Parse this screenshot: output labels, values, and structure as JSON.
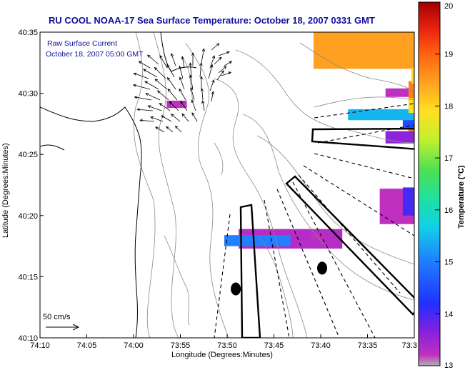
{
  "chart_data": {
    "type": "heatmap",
    "title": "RU COOL  NOAA-17  Sea Surface Temperature:  October 18, 2007 0331 GMT",
    "xlabel": "Longitude (Degrees:Minutes)",
    "ylabel": "Latitude (Degrees:Minutes)",
    "x_ticks": [
      "74:10",
      "74:05",
      "74:00",
      "73:55",
      "73:50",
      "73:45",
      "73:40",
      "73:35",
      "73:3"
    ],
    "y_ticks": [
      "40:35",
      "40:30",
      "40:25",
      "40:20",
      "40:15",
      "40:10"
    ],
    "xlim_minutes_west": [
      10,
      -3
    ],
    "ylim_minutes_north": [
      10,
      35
    ],
    "colorbar": {
      "label": "Temperature (°C)",
      "range": [
        13,
        20
      ],
      "ticks": [
        "20",
        "19",
        "18",
        "17",
        "16",
        "15",
        "14",
        "13"
      ]
    },
    "inset_text": [
      "Raw Surface Current",
      "October 18, 2007 05:00 GMT"
    ],
    "scale_label": "50 cm/s",
    "sst_patches": [
      {
        "lon": -6.5,
        "lat": 33.7,
        "w": 1.5,
        "h": 1.6,
        "temp": 13.1
      },
      {
        "lon": -6.6,
        "lat": 30.0,
        "w": 2.2,
        "h": 3.2,
        "temp": 13.6
      },
      {
        "lon": -8.0,
        "lat": 28.5,
        "w": 3.0,
        "h": 1.6,
        "temp": 13.5
      },
      {
        "lon": -2.0,
        "lat": 29.7,
        "w": 2.0,
        "h": 0.7,
        "temp": 13.0
      },
      {
        "lon": 5.6,
        "lat": 28.8,
        "w": 0.7,
        "h": 0.6,
        "temp": 13.0
      },
      {
        "lon": -5.6,
        "lat": 25.8,
        "w": 0.9,
        "h": 0.7,
        "temp": 13.0
      },
      {
        "lon": 3.1,
        "lat": 17.3,
        "w": 3.6,
        "h": 1.6,
        "temp": 13.1
      },
      {
        "lon": 3.6,
        "lat": 17.5,
        "w": 2.3,
        "h": 0.9,
        "temp": 14.6
      },
      {
        "lon": 0.6,
        "lat": 18.0,
        "w": 0.5,
        "h": 0.5,
        "temp": 13.0
      },
      {
        "lon": -11.2,
        "lat": 33.0,
        "w": 7.0,
        "h": 2.0,
        "temp": 13.0
      },
      {
        "lon": -8.3,
        "lat": 31.0,
        "w": 3.5,
        "h": 2.0,
        "temp": 13.3
      },
      {
        "lon": -6.0,
        "lat": 29.0,
        "w": 4.0,
        "h": 2.0,
        "temp": 13.0
      },
      {
        "lon": -2.8,
        "lat": 26.8,
        "w": 6.5,
        "h": 4.2,
        "temp": 18.1
      },
      {
        "lon": -3.0,
        "lat": 30.8,
        "w": 3.5,
        "h": 4.2,
        "temp": 18.6
      },
      {
        "lon": 0.5,
        "lat": 32.0,
        "w": 4.0,
        "h": 3.0,
        "temp": 17.8
      },
      {
        "lon": -2.6,
        "lat": 27.1,
        "w": 5.8,
        "h": 1.3,
        "temp": 14.2
      },
      {
        "lon": -0.7,
        "lat": 27.8,
        "w": 2.8,
        "h": 0.9,
        "temp": 15.0
      },
      {
        "lon": -2.0,
        "lat": 25.9,
        "w": 4.7,
        "h": 1.0,
        "temp": 13.4
      },
      {
        "lon": -2.8,
        "lat": 28.4,
        "w": 2.2,
        "h": 1.2,
        "temp": 17.2
      },
      {
        "lon": -2.9,
        "lat": 30.8,
        "w": 1.6,
        "h": 1.3,
        "temp": 17.3
      },
      {
        "lon": -1.8,
        "lat": 19.3,
        "w": 1.2,
        "h": 2.9,
        "temp": 13.0
      },
      {
        "lon": -2.6,
        "lat": 20.0,
        "w": 0.6,
        "h": 2.3,
        "temp": 13.8
      }
    ],
    "filled_markers": [
      {
        "lon": 0.2,
        "lat": 15.7
      },
      {
        "lon": 3.2,
        "lat": 14.0
      }
    ]
  }
}
